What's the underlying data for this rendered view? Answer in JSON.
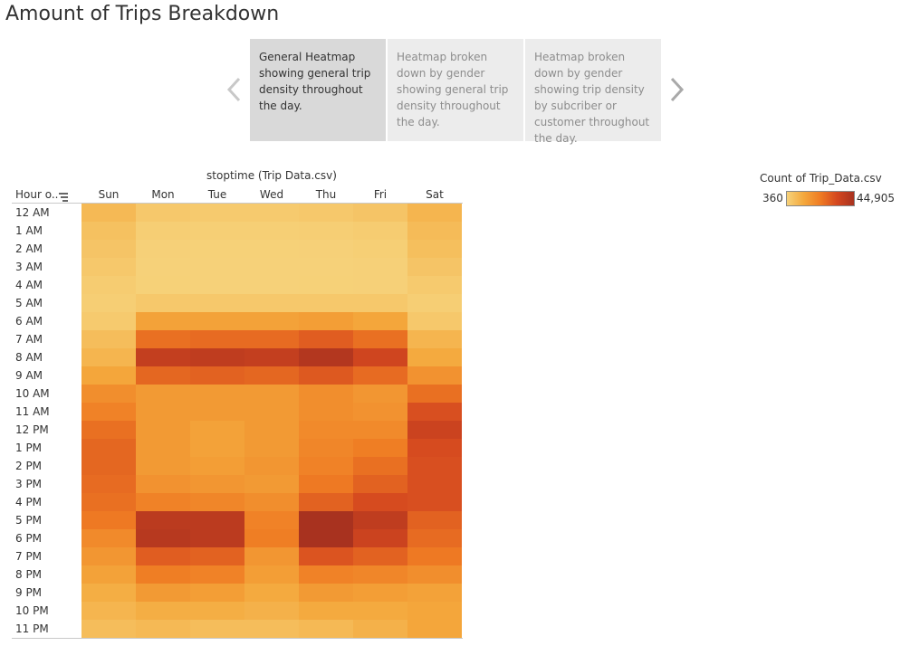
{
  "page": {
    "title": "Amount of Trips Breakdown"
  },
  "story": {
    "points": [
      {
        "label": "General Heatmap showing general trip density throughout the day.",
        "active": true
      },
      {
        "label": "Heatmap broken down by gender showing general trip density throughout the day.",
        "active": false
      },
      {
        "label": "Heatmap broken down by gender showing trip density by subcriber or customer throughout the day.",
        "active": false
      }
    ]
  },
  "chart_data": {
    "type": "heatmap",
    "column_title": "stoptime (Trip Data.csv)",
    "row_header": "Hour o..",
    "columns": [
      "Sun",
      "Mon",
      "Tue",
      "Wed",
      "Thu",
      "Fri",
      "Sat"
    ],
    "rows": [
      "12 AM",
      "1 AM",
      "2 AM",
      "3 AM",
      "4 AM",
      "5 AM",
      "6 AM",
      "7 AM",
      "8 AM",
      "9 AM",
      "10 AM",
      "11 AM",
      "12 PM",
      "1 PM",
      "2 PM",
      "3 PM",
      "4 PM",
      "5 PM",
      "6 PM",
      "7 PM",
      "8 PM",
      "9 PM",
      "10 PM",
      "11 PM"
    ],
    "values": [
      [
        7000,
        3000,
        2500,
        2500,
        3000,
        4000,
        8000
      ],
      [
        5000,
        1500,
        1200,
        1200,
        1500,
        2000,
        6500
      ],
      [
        4000,
        800,
        700,
        700,
        800,
        1200,
        5500
      ],
      [
        3000,
        600,
        500,
        500,
        600,
        800,
        4000
      ],
      [
        2000,
        700,
        600,
        600,
        700,
        800,
        2500
      ],
      [
        1500,
        3000,
        3000,
        3000,
        3000,
        3000,
        1500
      ],
      [
        2500,
        13000,
        13000,
        13000,
        14000,
        12000,
        3000
      ],
      [
        6000,
        25000,
        26000,
        26000,
        29000,
        25000,
        8000
      ],
      [
        8000,
        38000,
        39000,
        38000,
        42000,
        35000,
        11000
      ],
      [
        12000,
        27000,
        28000,
        27000,
        30000,
        26000,
        17000
      ],
      [
        18000,
        15000,
        15000,
        15000,
        18000,
        16000,
        25000
      ],
      [
        21000,
        15000,
        15000,
        15000,
        18000,
        17000,
        32000
      ],
      [
        25000,
        15000,
        13000,
        15000,
        19000,
        19000,
        36000
      ],
      [
        27000,
        15000,
        13000,
        15000,
        20000,
        22000,
        33000
      ],
      [
        27000,
        15000,
        14000,
        16000,
        21000,
        25000,
        32000
      ],
      [
        26000,
        17000,
        16000,
        15000,
        23000,
        28000,
        32000
      ],
      [
        25000,
        21000,
        20000,
        18000,
        28000,
        33000,
        32000
      ],
      [
        23000,
        40000,
        40000,
        21000,
        44905,
        39000,
        28000
      ],
      [
        19000,
        41000,
        40000,
        22000,
        44905,
        36000,
        26000
      ],
      [
        16000,
        29000,
        28000,
        16000,
        31000,
        28000,
        23000
      ],
      [
        13000,
        22000,
        21000,
        14000,
        21000,
        20000,
        18000
      ],
      [
        10000,
        15000,
        14000,
        11000,
        15000,
        14000,
        13000
      ],
      [
        8000,
        10000,
        10000,
        9000,
        11000,
        11000,
        12000
      ],
      [
        6000,
        7000,
        6000,
        6000,
        7000,
        9000,
        12000
      ]
    ],
    "color_scale": {
      "title": "Count of Trip_Data.csv",
      "min": 360,
      "max": 44905,
      "min_label": "360",
      "max_label": "44,905",
      "colors": [
        "#f6d27a",
        "#f4a83c",
        "#ef7b23",
        "#d4471f",
        "#a8321f"
      ]
    }
  }
}
